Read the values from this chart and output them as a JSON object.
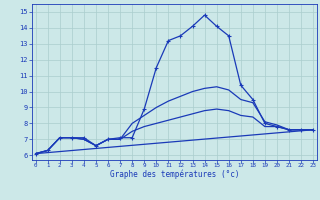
{
  "xlabel": "Graphe des températures (°c)",
  "x_ticks": [
    0,
    1,
    2,
    3,
    4,
    5,
    6,
    7,
    8,
    9,
    10,
    11,
    12,
    13,
    14,
    15,
    16,
    17,
    18,
    19,
    20,
    21,
    22,
    23
  ],
  "y_ticks": [
    6,
    7,
    8,
    9,
    10,
    11,
    12,
    13,
    14,
    15
  ],
  "ylim": [
    5.7,
    15.5
  ],
  "xlim": [
    -0.3,
    23.3
  ],
  "bg_color": "#cce8e8",
  "line_color": "#1a3ab8",
  "grid_color": "#aacece",
  "series": [
    {
      "x": [
        0,
        1,
        2,
        3,
        4,
        5,
        6,
        7,
        8,
        9,
        10,
        11,
        12,
        13,
        14,
        15,
        16,
        17,
        18,
        19,
        20,
        21,
        22,
        23
      ],
      "y": [
        6.1,
        6.3,
        7.1,
        7.1,
        7.1,
        6.6,
        7.0,
        7.1,
        7.1,
        8.9,
        11.5,
        13.2,
        13.5,
        14.1,
        14.8,
        14.1,
        13.5,
        10.4,
        9.5,
        8.0,
        7.8,
        7.6,
        7.6,
        7.6
      ],
      "marker": "+",
      "lw": 0.9
    },
    {
      "x": [
        0,
        1,
        2,
        3,
        4,
        5,
        6,
        7,
        8,
        9,
        10,
        11,
        12,
        13,
        14,
        15,
        16,
        17,
        18,
        19,
        20,
        21,
        22,
        23
      ],
      "y": [
        6.1,
        6.3,
        7.1,
        7.1,
        7.0,
        6.6,
        7.0,
        7.0,
        8.0,
        8.5,
        9.0,
        9.4,
        9.7,
        10.0,
        10.2,
        10.3,
        10.1,
        9.5,
        9.3,
        8.1,
        7.9,
        7.6,
        7.6,
        7.6
      ],
      "marker": null,
      "lw": 0.9
    },
    {
      "x": [
        0,
        1,
        2,
        3,
        4,
        5,
        6,
        7,
        8,
        9,
        10,
        11,
        12,
        13,
        14,
        15,
        16,
        17,
        18,
        19,
        20,
        21,
        22,
        23
      ],
      "y": [
        6.1,
        6.3,
        7.1,
        7.1,
        7.0,
        6.6,
        7.0,
        7.0,
        7.5,
        7.8,
        8.0,
        8.2,
        8.4,
        8.6,
        8.8,
        8.9,
        8.8,
        8.5,
        8.4,
        7.8,
        7.8,
        7.6,
        7.6,
        7.6
      ],
      "marker": null,
      "lw": 0.9
    },
    {
      "x": [
        0,
        23
      ],
      "y": [
        6.1,
        7.6
      ],
      "marker": null,
      "lw": 0.9
    }
  ]
}
